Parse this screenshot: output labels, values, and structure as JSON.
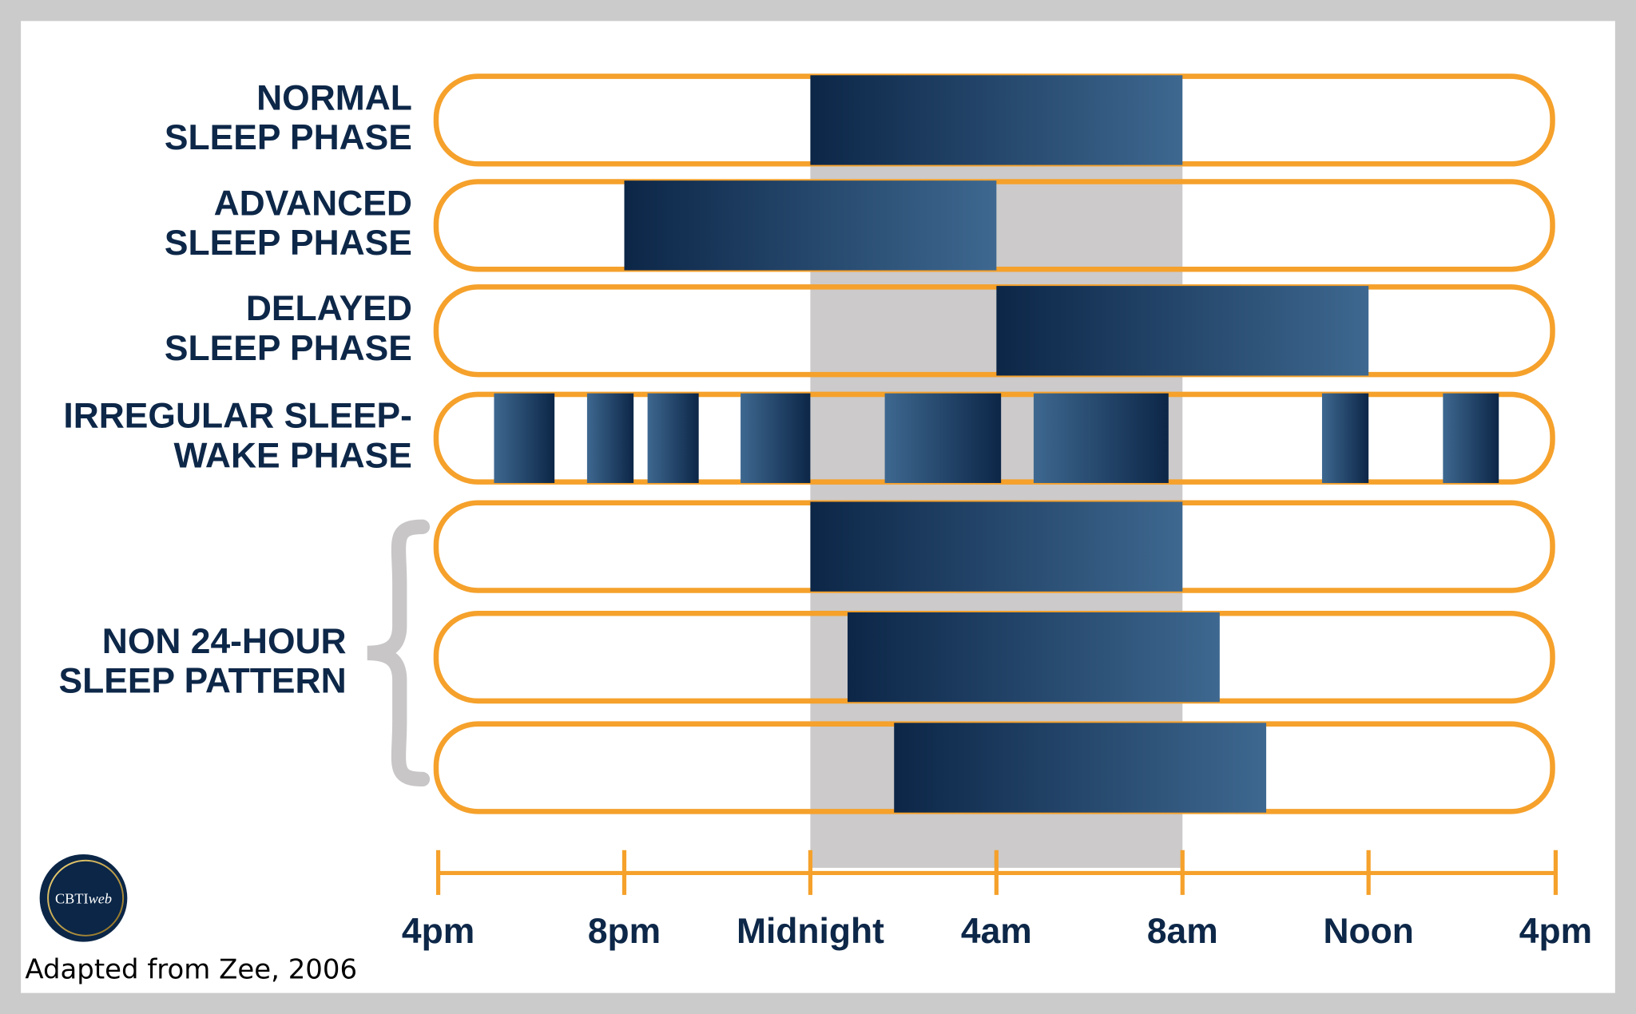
{
  "chart_data": {
    "type": "bar",
    "orientation": "horizontal-range",
    "xlim": [
      16,
      40
    ],
    "x_ticks": [
      16,
      20,
      24,
      28,
      32,
      36,
      40
    ],
    "x_tick_labels": [
      "4pm",
      "8pm",
      "Midnight",
      "4am",
      "8am",
      "Noon",
      "4pm"
    ],
    "highlight_band": [
      24,
      32
    ],
    "rows": [
      {
        "label": [
          "NORMAL",
          "SLEEP PHASE"
        ],
        "blocks": [
          [
            24,
            32
          ]
        ]
      },
      {
        "label": [
          "ADVANCED",
          "SLEEP PHASE"
        ],
        "blocks": [
          [
            20,
            28
          ]
        ]
      },
      {
        "label": [
          "DELAYED",
          "SLEEP PHASE"
        ],
        "blocks": [
          [
            28,
            36
          ]
        ]
      },
      {
        "label": [
          "IRREGULAR SLEEP-",
          "WAKE PHASE"
        ],
        "blocks": [
          [
            17.2,
            18.5
          ],
          [
            19.2,
            20.2
          ],
          [
            20.5,
            21.6
          ],
          [
            22.5,
            24
          ],
          [
            25.6,
            28.1
          ],
          [
            28.8,
            31.7
          ],
          [
            35.0,
            36.0
          ],
          [
            37.6,
            38.8
          ]
        ]
      },
      {
        "label": [],
        "blocks": [
          [
            24,
            32
          ]
        ]
      },
      {
        "label": [],
        "blocks": [
          [
            24.8,
            32.8
          ]
        ]
      },
      {
        "label": [],
        "blocks": [
          [
            25.8,
            33.8
          ]
        ]
      }
    ],
    "group_label": [
      "NON 24-HOUR",
      "SLEEP PATTERN"
    ],
    "group_rows": [
      4,
      5,
      6
    ]
  },
  "colors": {
    "outline": "#f5a12b",
    "bar_dark": "#0c2647",
    "bar_light": "#3e6890",
    "band": "#cccaca",
    "text": "#0d2748",
    "frame": "#cccbcb"
  },
  "credit": "Adapted from Zee, 2006",
  "logo": {
    "text": "CBTI",
    "suffix": "web"
  }
}
